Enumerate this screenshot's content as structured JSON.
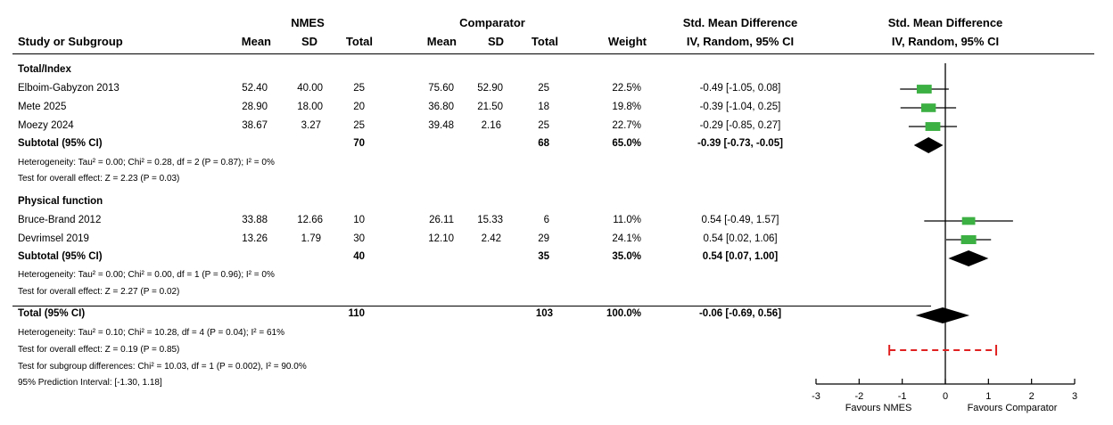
{
  "header": {
    "nmes_group": "NMES",
    "comparator_group": "Comparator",
    "smd_title": "Std. Mean Difference",
    "smd_sub": "IV, Random, 95% CI",
    "plot_title": "Std. Mean Difference",
    "plot_sub": "IV, Random, 95% CI",
    "col_study": "Study or Subgroup",
    "col_mean1": "Mean",
    "col_sd1": "SD",
    "col_total1": "Total",
    "col_mean2": "Mean",
    "col_sd2": "SD",
    "col_total2": "Total",
    "col_weight": "Weight"
  },
  "groups": [
    {
      "name": "Total/Index",
      "studies": [
        {
          "study": "Elboim-Gabyzon 2013",
          "mean1": "52.40",
          "sd1": "40.00",
          "n1": "25",
          "mean2": "75.60",
          "sd2": "52.90",
          "n2": "25",
          "weight": "22.5%",
          "ci": "-0.49 [-1.05, 0.08]"
        },
        {
          "study": "Mete 2025",
          "mean1": "28.90",
          "sd1": "18.00",
          "n1": "20",
          "mean2": "36.80",
          "sd2": "21.50",
          "n2": "18",
          "weight": "19.8%",
          "ci": "-0.39 [-1.04, 0.25]"
        },
        {
          "study": "Moezy 2024",
          "mean1": "38.67",
          "sd1": "3.27",
          "n1": "25",
          "mean2": "39.48",
          "sd2": "2.16",
          "n2": "25",
          "weight": "22.7%",
          "ci": "-0.29 [-0.85, 0.27]"
        }
      ],
      "subtotal": {
        "label": "Subtotal (95% CI)",
        "n1": "70",
        "n2": "68",
        "weight": "65.0%",
        "ci": "-0.39 [-0.73, -0.05]"
      },
      "heterogeneity": "Heterogeneity: Tau² = 0.00; Chi² = 0.28, df = 2 (P = 0.87); I² = 0%",
      "overall": "Test for overall effect: Z = 2.23 (P = 0.03)"
    },
    {
      "name": "Physical function",
      "studies": [
        {
          "study": "Bruce-Brand 2012",
          "mean1": "33.88",
          "sd1": "12.66",
          "n1": "10",
          "mean2": "26.11",
          "sd2": "15.33",
          "n2": "6",
          "weight": "11.0%",
          "ci": "0.54 [-0.49, 1.57]"
        },
        {
          "study": "Devrimsel 2019",
          "mean1": "13.26",
          "sd1": "1.79",
          "n1": "30",
          "mean2": "12.10",
          "sd2": "2.42",
          "n2": "29",
          "weight": "24.1%",
          "ci": "0.54 [0.02, 1.06]"
        }
      ],
      "subtotal": {
        "label": "Subtotal (95% CI)",
        "n1": "40",
        "n2": "35",
        "weight": "35.0%",
        "ci": "0.54 [0.07, 1.00]"
      },
      "heterogeneity": "Heterogeneity: Tau² = 0.00; Chi² = 0.00, df = 1 (P = 0.96); I² = 0%",
      "overall": "Test for overall effect: Z = 2.27 (P = 0.02)"
    }
  ],
  "total": {
    "label": "Total (95% CI)",
    "n1": "110",
    "n2": "103",
    "weight": "100.0%",
    "ci": "-0.06 [-0.69, 0.56]"
  },
  "footer": {
    "heterogeneity": "Heterogeneity: Tau² = 0.10; Chi² = 10.28, df = 4 (P = 0.04); I² = 61%",
    "overall": "Test for overall effect: Z = 0.19 (P = 0.85)",
    "subgroup": "Test for subgroup differences: Chi² = 10.03, df = 1 (P = 0.002), I² = 90.0%",
    "prediction": "95% Prediction Interval: [-1.30, 1.18]"
  },
  "chart_data": {
    "type": "forest",
    "xlim": [
      -3,
      3
    ],
    "ticks": [
      -3,
      -2,
      -1,
      0,
      1,
      2,
      3
    ],
    "xlabel_left": "Favours NMES",
    "xlabel_right": "Favours Comparator",
    "studies": [
      {
        "est": -0.49,
        "lo": -1.05,
        "hi": 0.08,
        "weight": 22.5
      },
      {
        "est": -0.39,
        "lo": -1.04,
        "hi": 0.25,
        "weight": 19.8
      },
      {
        "est": -0.29,
        "lo": -0.85,
        "hi": 0.27,
        "weight": 22.7
      },
      {
        "est": 0.54,
        "lo": -0.49,
        "hi": 1.57,
        "weight": 11.0
      },
      {
        "est": 0.54,
        "lo": 0.02,
        "hi": 1.06,
        "weight": 24.1
      }
    ],
    "diamonds": [
      {
        "est": -0.39,
        "lo": -0.73,
        "hi": -0.05
      },
      {
        "est": 0.54,
        "lo": 0.07,
        "hi": 1.0
      },
      {
        "est": -0.06,
        "lo": -0.69,
        "hi": 0.56
      }
    ],
    "prediction_interval": [
      -1.3,
      1.18
    ],
    "colors": {
      "square": "#3cb043",
      "diamond": "#000000",
      "prediction": "#e02020"
    }
  }
}
